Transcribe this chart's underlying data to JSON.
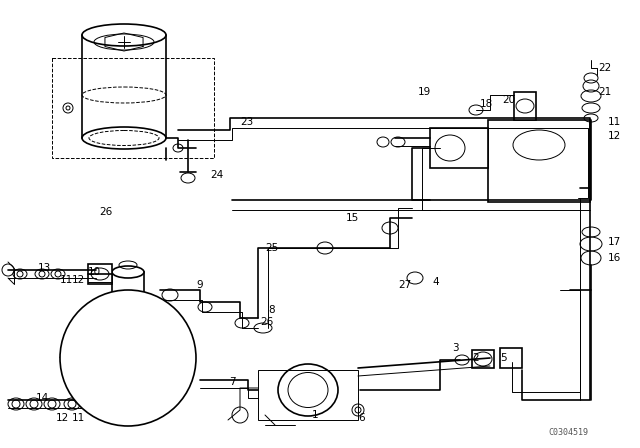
{
  "bg_color": "#ffffff",
  "line_color": "#000000",
  "figsize": [
    6.4,
    4.48
  ],
  "dpi": 100,
  "watermark": "C0304519",
  "font_size": 7.5,
  "lw_main": 1.2,
  "lw_thin": 0.7,
  "labels": [
    [
      "1",
      315,
      415,
      "center"
    ],
    [
      "2",
      472,
      358,
      "left"
    ],
    [
      "3",
      452,
      348,
      "left"
    ],
    [
      "4",
      432,
      282,
      "left"
    ],
    [
      "5",
      500,
      358,
      "left"
    ],
    [
      "6",
      358,
      418,
      "left"
    ],
    [
      "7",
      232,
      382,
      "center"
    ],
    [
      "8",
      268,
      310,
      "left"
    ],
    [
      "9",
      196,
      285,
      "left"
    ],
    [
      "10",
      88,
      272,
      "left"
    ],
    [
      "11",
      60,
      280,
      "left"
    ],
    [
      "12",
      72,
      280,
      "left"
    ],
    [
      "13",
      38,
      268,
      "left"
    ],
    [
      "14",
      36,
      398,
      "left"
    ],
    [
      "15",
      346,
      218,
      "left"
    ],
    [
      "16",
      608,
      258,
      "left"
    ],
    [
      "17",
      608,
      242,
      "left"
    ],
    [
      "18",
      480,
      104,
      "left"
    ],
    [
      "19",
      418,
      92,
      "left"
    ],
    [
      "20",
      502,
      100,
      "left"
    ],
    [
      "21",
      598,
      92,
      "left"
    ],
    [
      "22",
      598,
      68,
      "left"
    ],
    [
      "23",
      240,
      122,
      "left"
    ],
    [
      "24",
      210,
      175,
      "left"
    ],
    [
      "25",
      265,
      248,
      "left"
    ],
    [
      "26",
      112,
      212,
      "right"
    ],
    [
      "26",
      260,
      322,
      "left"
    ],
    [
      "27",
      398,
      285,
      "left"
    ],
    [
      "11",
      78,
      418,
      "center"
    ],
    [
      "12",
      62,
      418,
      "center"
    ],
    [
      "11",
      608,
      122,
      "left"
    ],
    [
      "12",
      608,
      136,
      "left"
    ]
  ]
}
